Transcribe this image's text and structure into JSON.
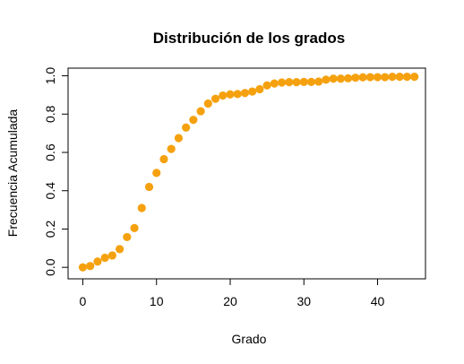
{
  "chart_data": {
    "type": "scatter",
    "title": "Distribución de los grados",
    "xlabel": "Grado",
    "ylabel": "Frecuencia Acumulada",
    "xlim": [
      -2,
      46.5
    ],
    "ylim": [
      -0.06,
      1.04
    ],
    "xticks": [
      0,
      10,
      20,
      30,
      40
    ],
    "yticks": [
      0.0,
      0.2,
      0.4,
      0.6,
      0.8,
      1.0
    ],
    "xtick_labels": [
      "0",
      "10",
      "20",
      "30",
      "40"
    ],
    "ytick_labels": [
      "0.0",
      "0.2",
      "0.4",
      "0.6",
      "0.8",
      "1.0"
    ],
    "grid": false,
    "marker_color": "#f5a10f",
    "x": [
      0,
      1,
      2,
      3,
      4,
      5,
      6,
      7,
      8,
      9,
      10,
      11,
      12,
      13,
      14,
      15,
      16,
      17,
      18,
      19,
      20,
      21,
      22,
      23,
      24,
      25,
      26,
      27,
      28,
      29,
      30,
      31,
      32,
      33,
      34,
      35,
      36,
      37,
      38,
      39,
      40,
      41,
      42,
      43,
      44,
      45
    ],
    "y": [
      0.0,
      0.007,
      0.03,
      0.05,
      0.062,
      0.095,
      0.158,
      0.205,
      0.31,
      0.42,
      0.493,
      0.565,
      0.618,
      0.675,
      0.73,
      0.77,
      0.815,
      0.855,
      0.88,
      0.897,
      0.903,
      0.905,
      0.91,
      0.918,
      0.93,
      0.95,
      0.96,
      0.965,
      0.967,
      0.967,
      0.968,
      0.968,
      0.97,
      0.98,
      0.985,
      0.985,
      0.987,
      0.99,
      0.992,
      0.993,
      0.993,
      0.993,
      0.995,
      0.995,
      0.995,
      0.995
    ]
  }
}
